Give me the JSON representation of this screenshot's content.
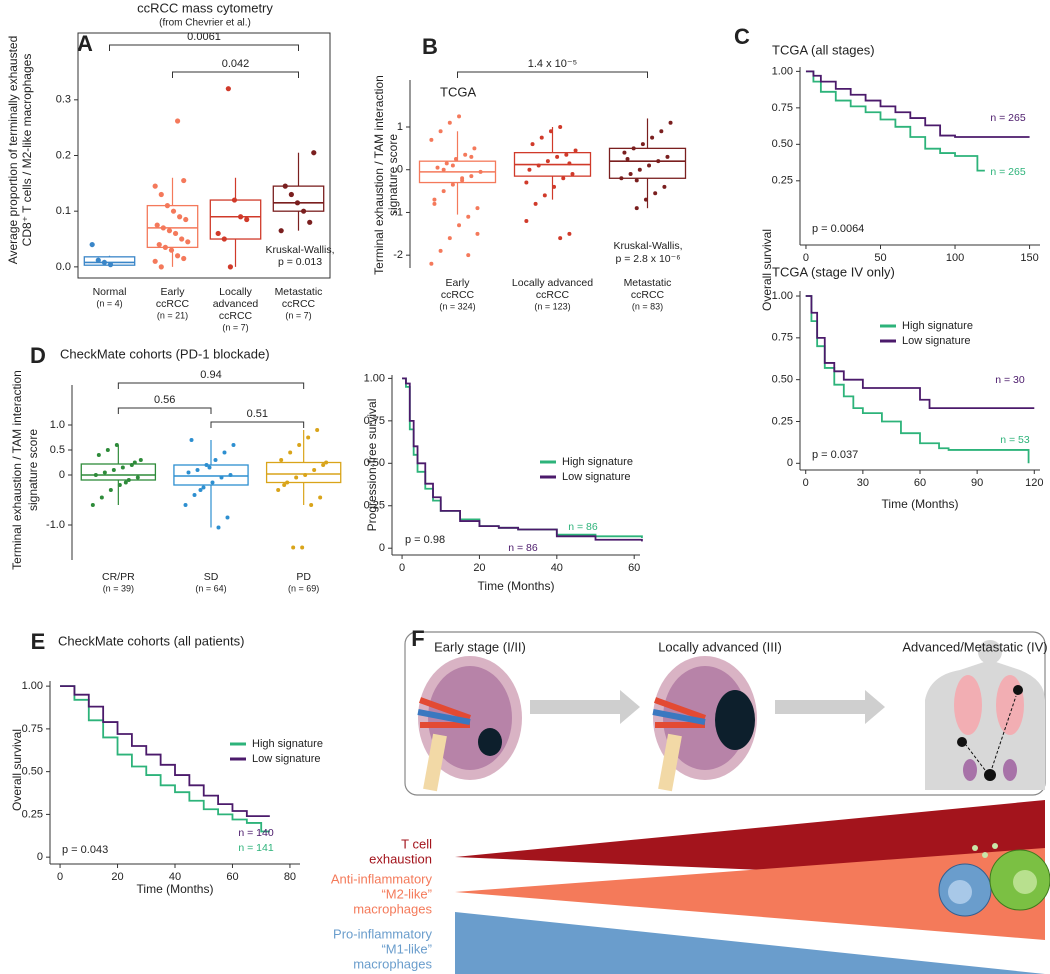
{
  "figure": {
    "panel_labels": [
      "A",
      "B",
      "C",
      "D",
      "E",
      "F"
    ]
  },
  "chart_data": [
    {
      "type": "box",
      "title": "ccRCC mass cytometry",
      "subtitle": "(from Chevrier et al.)",
      "ylabel": [
        "Average proportion of terminally exhausted",
        "CD8⁺ T cells / M2-like macrophages"
      ],
      "categories": [
        [
          "Normal"
        ],
        [
          "Early",
          "ccRCC"
        ],
        [
          "Locally",
          "advanced",
          "ccRCC"
        ],
        [
          "Metastatic",
          "ccRCC"
        ]
      ],
      "n_labels": [
        "(n = 4)",
        "(n = 21)",
        "(n = 7)",
        "(n = 7)"
      ],
      "colors": [
        "#3a86c8",
        "#f4795b",
        "#d03a2a",
        "#7a1f1f"
      ],
      "boxes": [
        {
          "low": 0.001,
          "q1": 0.003,
          "median": 0.008,
          "q3": 0.018,
          "high": 0.02
        },
        {
          "low": 0.0,
          "q1": 0.035,
          "median": 0.07,
          "q3": 0.11,
          "high": 0.16
        },
        {
          "low": 0.0,
          "q1": 0.05,
          "median": 0.09,
          "q3": 0.12,
          "high": 0.16
        },
        {
          "low": 0.065,
          "q1": 0.1,
          "median": 0.115,
          "q3": 0.145,
          "high": 0.205
        }
      ],
      "points": [
        [
          0.04,
          0.012,
          0.008,
          0.004
        ],
        [
          0.262,
          0.155,
          0.145,
          0.13,
          0.11,
          0.1,
          0.09,
          0.085,
          0.075,
          0.07,
          0.065,
          0.06,
          0.05,
          0.045,
          0.04,
          0.035,
          0.03,
          0.02,
          0.015,
          0.01,
          0.0
        ],
        [
          0.32,
          0.12,
          0.09,
          0.085,
          0.06,
          0.05,
          0.0
        ],
        [
          0.205,
          0.145,
          0.13,
          0.115,
          0.1,
          0.08,
          0.065
        ]
      ],
      "brackets": [
        "0.0061",
        "0.042"
      ],
      "annotations": [
        "Kruskal-Wallis,",
        "p = 0.013"
      ],
      "ylim": [
        -0.02,
        0.42
      ],
      "yticks": [
        {
          "value": 0,
          "label": "0.0"
        },
        0.1,
        0.2,
        0.3
      ]
    },
    {
      "type": "box",
      "title": "TCGA",
      "ylabel": [
        "Terminal exhaustion / TAM interaction",
        "signature score"
      ],
      "categories": [
        [
          "Early",
          "ccRCC"
        ],
        [
          "Locally advanced",
          "ccRCC"
        ],
        [
          "Metastatic",
          "ccRCC"
        ]
      ],
      "n_labels": [
        "(n = 324)",
        "(n = 123)",
        "(n = 83)"
      ],
      "colors": [
        "#f4795b",
        "#d03a2a",
        "#7a1f1f"
      ],
      "boxes": [
        {
          "low": -1.05,
          "q1": -0.3,
          "median": -0.05,
          "q3": 0.2,
          "high": 0.9
        },
        {
          "low": -0.7,
          "q1": -0.15,
          "median": 0.12,
          "q3": 0.4,
          "high": 1.0
        },
        {
          "low": -0.9,
          "q1": -0.2,
          "median": 0.2,
          "q3": 0.5,
          "high": 1.2
        }
      ],
      "points": [
        [
          -2.2,
          -1.9,
          -1.6,
          -1.3,
          -1.1,
          -0.9,
          -0.7,
          -0.5,
          -0.35,
          -0.25,
          -0.15,
          -0.05,
          0.05,
          0.15,
          0.25,
          0.35,
          0.5,
          0.7,
          0.9,
          1.1,
          1.25,
          -2.0,
          -1.5,
          -0.8,
          0.0,
          0.1,
          -0.2,
          0.3
        ],
        [
          -1.6,
          -1.5,
          -1.2,
          -0.8,
          -0.6,
          -0.4,
          -0.2,
          -0.1,
          0.0,
          0.1,
          0.2,
          0.3,
          0.35,
          0.45,
          0.6,
          0.75,
          0.9,
          1.0,
          0.15,
          -0.3
        ],
        [
          -0.9,
          -0.7,
          -0.55,
          -0.4,
          -0.2,
          -0.1,
          0.0,
          0.1,
          0.2,
          0.3,
          0.4,
          0.5,
          0.6,
          0.75,
          0.9,
          1.1,
          0.25,
          -0.25
        ]
      ],
      "brackets": [
        "1.4 x 10⁻⁵"
      ],
      "annotations": [
        "Kruskal-Wallis,",
        "p = 2.8 x 10⁻⁶"
      ],
      "ylim": [
        -2.3,
        2.1
      ],
      "yticks": [
        -2,
        -1,
        0,
        1
      ]
    },
    {
      "type": "line",
      "step": true,
      "title": "TCGA (all stages)",
      "series": [
        {
          "name": "High signature",
          "color": "#2db37a",
          "label": "n = 265",
          "x": [
            0,
            5,
            10,
            20,
            30,
            40,
            50,
            60,
            70,
            80,
            90,
            100,
            110,
            115,
            120
          ],
          "values": [
            1,
            0.93,
            0.86,
            0.8,
            0.76,
            0.72,
            0.67,
            0.62,
            0.55,
            0.47,
            0.44,
            0.42,
            0.42,
            0.32,
            0.32
          ]
        },
        {
          "name": "Low signature",
          "color": "#4b1a6b",
          "label": "n = 265",
          "x": [
            0,
            5,
            10,
            20,
            30,
            40,
            50,
            60,
            70,
            80,
            90,
            100,
            120,
            150
          ],
          "values": [
            1,
            0.97,
            0.93,
            0.88,
            0.84,
            0.8,
            0.76,
            0.72,
            0.68,
            0.63,
            0.56,
            0.55,
            0.55,
            0.55
          ]
        }
      ],
      "annotations": [
        "p = 0.0064"
      ],
      "xlim": [
        -4,
        157
      ],
      "xticks": [
        0,
        50,
        100,
        150
      ],
      "ylim": [
        -0.19,
        1.03
      ],
      "yticks": [
        0.25,
        {
          "value": 0.5,
          "label": "0.50"
        },
        0.75,
        {
          "value": 1,
          "label": "1.00"
        }
      ]
    },
    {
      "type": "line",
      "step": true,
      "title": "TCGA (stage IV only)",
      "xlabel": "Time (Months)",
      "ylabel": "Overall survival",
      "legend": true,
      "series": [
        {
          "name": "High signature",
          "color": "#2db37a",
          "label": "n = 53",
          "x": [
            0,
            3,
            6,
            10,
            15,
            20,
            25,
            30,
            40,
            50,
            60,
            70,
            75,
            115,
            117
          ],
          "values": [
            1,
            0.85,
            0.7,
            0.57,
            0.47,
            0.4,
            0.33,
            0.3,
            0.25,
            0.18,
            0.12,
            0.09,
            0.08,
            0.08,
            0
          ]
        },
        {
          "name": "Low signature",
          "color": "#4b1a6b",
          "label": "n = 30",
          "x": [
            0,
            3,
            6,
            10,
            15,
            20,
            30,
            40,
            50,
            60,
            65,
            120
          ],
          "values": [
            1,
            0.9,
            0.75,
            0.6,
            0.55,
            0.5,
            0.45,
            0.45,
            0.45,
            0.38,
            0.33,
            0.33
          ]
        }
      ],
      "annotations": [
        "p = 0.037"
      ],
      "xlim": [
        -3,
        123
      ],
      "xticks": [
        0,
        30,
        60,
        90,
        120
      ],
      "ylim": [
        -0.04,
        1.03
      ],
      "yticks": [
        0,
        0.25,
        {
          "value": 0.5,
          "label": "0.50"
        },
        0.75,
        {
          "value": 1,
          "label": "1.00"
        }
      ]
    },
    {
      "type": "box",
      "title": "CheckMate cohorts (PD-1 blockade)",
      "ylabel": [
        "Terminal exhaustion / TAM interaction",
        "signature score"
      ],
      "categories": [
        [
          "CR/PR"
        ],
        [
          "SD"
        ],
        [
          "PD"
        ]
      ],
      "n_labels": [
        "(n = 39)",
        "(n = 64)",
        "(n = 69)"
      ],
      "colors": [
        "#2e8b3a",
        "#2d8fd0",
        "#d9a41a"
      ],
      "boxes": [
        {
          "low": -0.6,
          "q1": -0.1,
          "median": 0.0,
          "q3": 0.22,
          "high": 0.6
        },
        {
          "low": -1.05,
          "q1": -0.2,
          "median": -0.02,
          "q3": 0.2,
          "high": 0.7
        },
        {
          "low": -0.6,
          "q1": -0.15,
          "median": 0.02,
          "q3": 0.25,
          "high": 0.9
        }
      ],
      "points": [
        [
          -0.6,
          -0.45,
          -0.3,
          -0.2,
          -0.1,
          -0.05,
          0.0,
          0.05,
          0.1,
          0.15,
          0.2,
          0.3,
          0.4,
          0.5,
          0.6,
          -0.15,
          0.25
        ],
        [
          -1.05,
          -0.85,
          -0.6,
          -0.4,
          -0.25,
          -0.15,
          -0.05,
          0.0,
          0.05,
          0.1,
          0.2,
          0.3,
          0.45,
          0.6,
          0.7,
          -0.3,
          0.15
        ],
        [
          -1.45,
          -1.45,
          -0.6,
          -0.45,
          -0.3,
          -0.15,
          -0.05,
          0.0,
          0.1,
          0.2,
          0.3,
          0.45,
          0.6,
          0.75,
          0.9,
          0.25,
          -0.2
        ]
      ],
      "brackets": [
        "0.94",
        "0.56",
        "0.51"
      ],
      "ylim": [
        -1.7,
        1.8
      ],
      "yticks": [
        {
          "value": 1,
          "label": "1.0"
        },
        0.5,
        0,
        {
          "value": -1,
          "label": "-1.0"
        }
      ]
    },
    {
      "type": "line",
      "step": true,
      "xlabel": "Time (Months)",
      "ylabel": "Progression-free survival",
      "legend": true,
      "series": [
        {
          "name": "High signature",
          "color": "#2db37a",
          "label": "n = 86",
          "x": [
            0,
            1,
            2,
            3,
            4,
            6,
            8,
            10,
            15,
            20,
            25,
            30,
            40,
            50,
            62
          ],
          "values": [
            1,
            0.95,
            0.7,
            0.55,
            0.45,
            0.35,
            0.28,
            0.22,
            0.17,
            0.13,
            0.12,
            0.11,
            0.08,
            0.07,
            0.06
          ]
        },
        {
          "name": "Low signature",
          "color": "#4b1a6b",
          "label": "n = 86",
          "x": [
            0,
            1,
            2,
            3,
            4,
            6,
            8,
            10,
            15,
            20,
            25,
            30,
            40,
            50,
            62
          ],
          "values": [
            1,
            0.97,
            0.75,
            0.6,
            0.5,
            0.38,
            0.3,
            0.22,
            0.16,
            0.13,
            0.12,
            0.11,
            0.07,
            0.05,
            0.04
          ]
        }
      ],
      "annotations": [
        "p = 0.98"
      ],
      "xlim": [
        -2.6,
        61.5
      ],
      "xticks": [
        0,
        20,
        40,
        60
      ],
      "ylim": [
        -0.04,
        1.02
      ],
      "yticks": [
        0,
        0.25,
        {
          "value": 0.5,
          "label": "0.50"
        },
        0.75,
        {
          "value": 1,
          "label": "1.00"
        }
      ]
    },
    {
      "type": "line",
      "step": true,
      "title": "CheckMate cohorts (all patients)",
      "xlabel": "Time (Months)",
      "ylabel": "Overall survival",
      "legend": true,
      "series": [
        {
          "name": "High signature",
          "color": "#2db37a",
          "label": "n = 141",
          "x": [
            0,
            5,
            10,
            15,
            20,
            25,
            30,
            35,
            40,
            45,
            50,
            55,
            60,
            65,
            70,
            73
          ],
          "values": [
            1,
            0.92,
            0.8,
            0.7,
            0.6,
            0.53,
            0.48,
            0.42,
            0.38,
            0.33,
            0.28,
            0.25,
            0.22,
            0.2,
            0.15,
            0.15
          ]
        },
        {
          "name": "Low signature",
          "color": "#4b1a6b",
          "label": "n = 140",
          "x": [
            0,
            5,
            10,
            15,
            20,
            25,
            30,
            35,
            40,
            45,
            50,
            55,
            60,
            65,
            70,
            73
          ],
          "values": [
            1,
            0.95,
            0.88,
            0.79,
            0.72,
            0.65,
            0.6,
            0.54,
            0.48,
            0.42,
            0.36,
            0.31,
            0.27,
            0.24,
            0.24,
            0.24
          ]
        }
      ],
      "annotations": [
        "p = 0.043"
      ],
      "xlim": [
        -3.5,
        83.5
      ],
      "xticks": [
        0,
        20,
        40,
        60,
        80
      ],
      "ylim": [
        -0.04,
        1.03
      ],
      "yticks": [
        0,
        0.25,
        {
          "value": 0.5,
          "label": "0.50"
        },
        0.75,
        {
          "value": 1,
          "label": "1.00"
        }
      ]
    }
  ],
  "diagram": {
    "stages": [
      "Early stage (I/II)",
      "Locally advanced (III)",
      "Advanced/Metastatic (IV)"
    ],
    "bands": [
      {
        "lines": [
          "T cell",
          "exhaustion"
        ],
        "color": "#a3141c"
      },
      {
        "lines": [
          "Anti-inflammatory",
          "“M2-like”",
          "macrophages"
        ],
        "color": "#f47a5a"
      },
      {
        "lines": [
          "Pro-inflammatory",
          "“M1-like”",
          "macrophages"
        ],
        "color": "#6a9dcc"
      }
    ]
  }
}
